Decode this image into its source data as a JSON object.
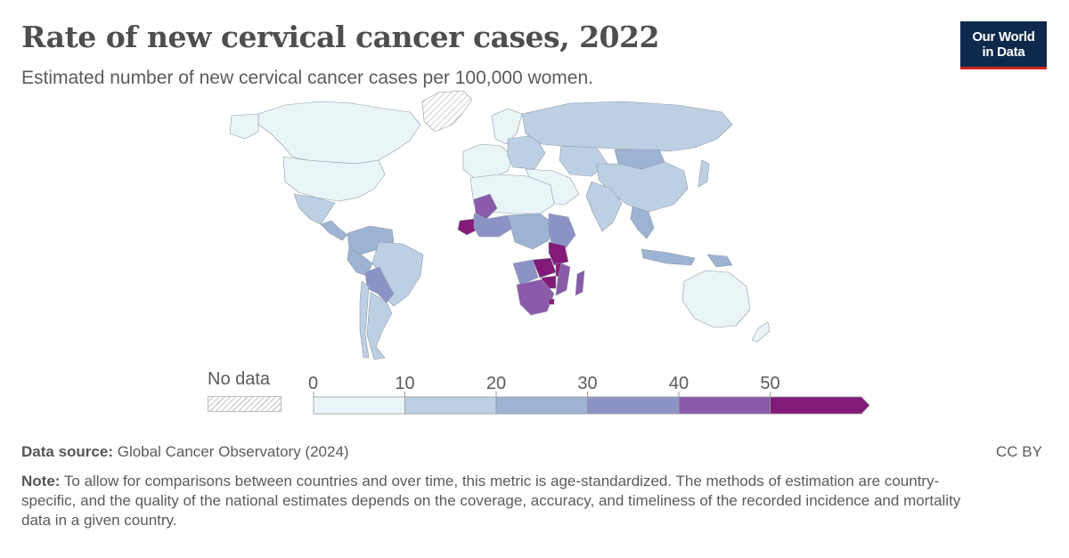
{
  "header": {
    "title": "Rate of new cervical cancer cases, 2022",
    "subtitle": "Estimated number of new cervical cancer cases per 100,000 women."
  },
  "logo": {
    "line1": "Our World",
    "line2": "in Data",
    "bg_color": "#0d2a4d",
    "accent_color": "#ce261e"
  },
  "map": {
    "type": "choropleth",
    "projection": "world",
    "value_unit": "cases per 100,000 women",
    "regions": [
      {
        "region": "Canada",
        "bin": "0-10"
      },
      {
        "region": "United States",
        "bin": "0-10"
      },
      {
        "region": "Greenland",
        "bin": "no data"
      },
      {
        "region": "Mexico",
        "bin": "10-20"
      },
      {
        "region": "Central America",
        "bin": "20-30"
      },
      {
        "region": "Northern South America",
        "bin": "20-30"
      },
      {
        "region": "Brazil",
        "bin": "10-20"
      },
      {
        "region": "Peru",
        "bin": "20-30"
      },
      {
        "region": "Bolivia",
        "bin": "30-40"
      },
      {
        "region": "Paraguay",
        "bin": "30-40"
      },
      {
        "region": "Argentina",
        "bin": "10-20"
      },
      {
        "region": "Chile",
        "bin": "10-20"
      },
      {
        "region": "Western Europe",
        "bin": "0-10"
      },
      {
        "region": "Eastern Europe",
        "bin": "10-20"
      },
      {
        "region": "Russia",
        "bin": "10-20"
      },
      {
        "region": "Central Asia",
        "bin": "10-20"
      },
      {
        "region": "Middle East",
        "bin": "0-10"
      },
      {
        "region": "India",
        "bin": "10-20"
      },
      {
        "region": "China",
        "bin": "10-20"
      },
      {
        "region": "Mongolia",
        "bin": "20-30"
      },
      {
        "region": "Japan",
        "bin": "10-20"
      },
      {
        "region": "Southeast Asia",
        "bin": "20-30"
      },
      {
        "region": "Indonesia",
        "bin": "20-30"
      },
      {
        "region": "Papua New Guinea",
        "bin": "20-30"
      },
      {
        "region": "Australia",
        "bin": "0-10"
      },
      {
        "region": "New Zealand",
        "bin": "0-10"
      },
      {
        "region": "North Africa",
        "bin": "0-10"
      },
      {
        "region": "Mali",
        "bin": "40-50"
      },
      {
        "region": "Guinea",
        "bin": "50+"
      },
      {
        "region": "West Africa coast",
        "bin": "30-40"
      },
      {
        "region": "Central Africa",
        "bin": "20-30"
      },
      {
        "region": "East Africa",
        "bin": "30-40"
      },
      {
        "region": "Tanzania",
        "bin": "50+"
      },
      {
        "region": "Malawi",
        "bin": "50+"
      },
      {
        "region": "Zambia",
        "bin": "50+"
      },
      {
        "region": "Zimbabwe",
        "bin": "50+"
      },
      {
        "region": "Mozambique",
        "bin": "40-50"
      },
      {
        "region": "Angola",
        "bin": "30-40"
      },
      {
        "region": "Southern Africa",
        "bin": "40-50"
      },
      {
        "region": "Eswatini",
        "bin": "50+"
      },
      {
        "region": "Madagascar",
        "bin": "40-50"
      }
    ]
  },
  "legend": {
    "no_data_label": "No data",
    "ticks": [
      "0",
      "10",
      "20",
      "30",
      "40",
      "50"
    ],
    "bins": [
      {
        "range": "0-10",
        "color": "#eaf5f8"
      },
      {
        "range": "10-20",
        "color": "#bdd0e3"
      },
      {
        "range": "20-30",
        "color": "#9cb3d3"
      },
      {
        "range": "30-40",
        "color": "#8b93c6"
      },
      {
        "range": "40-50",
        "color": "#8b5aab"
      },
      {
        "range": "50+",
        "color": "#831a7a"
      }
    ]
  },
  "footer": {
    "source_label": "Data source:",
    "source_text": "Global Cancer Observatory (2024)",
    "license": "CC BY",
    "note_label": "Note:",
    "note_text": "To allow for comparisons between countries and over time, this metric is age-standardized. The methods of estimation are country-specific, and the quality of the national estimates depends on the coverage, accuracy, and timeliness of the recorded incidence and mortality data in a given country."
  }
}
